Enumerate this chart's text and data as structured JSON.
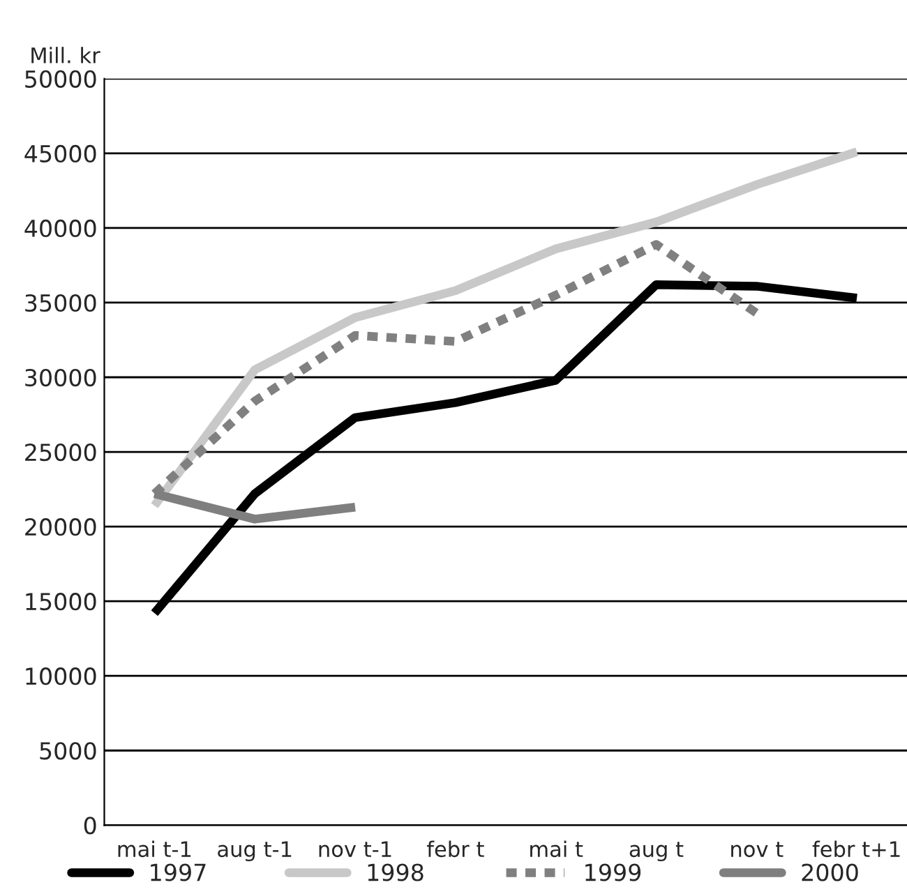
{
  "chart_data": {
    "type": "line",
    "ylabel": "Mill. kr",
    "categories": [
      "mai t-1",
      "aug t-1",
      "nov t-1",
      "febr t",
      "mai t",
      "aug t",
      "nov t",
      "febr t+1"
    ],
    "series": [
      {
        "name": "1997",
        "color": "#000000",
        "line_style": "solid",
        "values": [
          14200,
          22200,
          27300,
          28300,
          29800,
          36200,
          36100,
          35300
        ]
      },
      {
        "name": "1998",
        "color": "#c8c8c8",
        "line_style": "solid",
        "values": [
          21400,
          30500,
          34000,
          35800,
          38600,
          40400,
          42900,
          45100
        ]
      },
      {
        "name": "1999",
        "color": "#808080",
        "line_style": "dotted",
        "values": [
          22200,
          28400,
          32800,
          32400,
          35500,
          38900,
          34300,
          null
        ]
      },
      {
        "name": "2000",
        "color": "#7f7f7f",
        "line_style": "solid",
        "values": [
          22200,
          20500,
          21300,
          null,
          null,
          null,
          null,
          null
        ]
      }
    ],
    "ylim": [
      0,
      50000
    ],
    "yticks": [
      0,
      5000,
      10000,
      15000,
      20000,
      25000,
      30000,
      35000,
      40000,
      45000,
      50000
    ],
    "grid": "y",
    "legend": "bottom",
    "marker": "none"
  }
}
